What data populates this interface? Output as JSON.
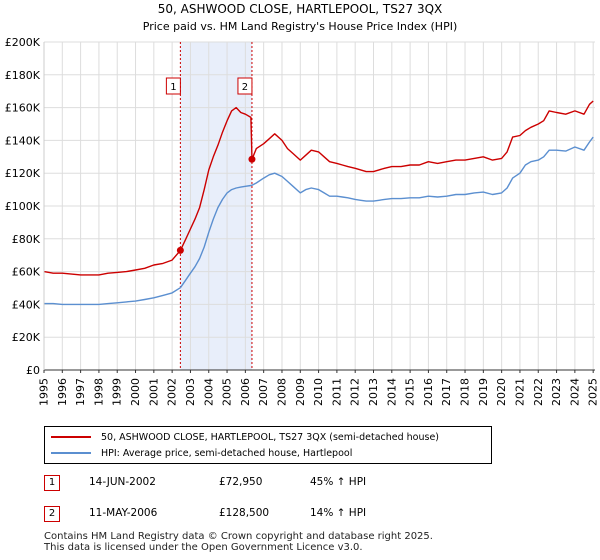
{
  "chart_data": {
    "type": "line",
    "title": "50, ASHWOOD CLOSE, HARTLEPOOL, TS27 3QX",
    "subtitle": "Price paid vs. HM Land Registry's House Price Index (HPI)",
    "xlim": [
      1995,
      2025.1
    ],
    "ylim": [
      0,
      200000
    ],
    "y_ticks": [
      0,
      20000,
      40000,
      60000,
      80000,
      100000,
      120000,
      140000,
      160000,
      180000,
      200000
    ],
    "y_tick_labels": [
      "£0",
      "£20K",
      "£40K",
      "£60K",
      "£80K",
      "£100K",
      "£120K",
      "£140K",
      "£160K",
      "£180K",
      "£200K"
    ],
    "x_ticks": [
      1995,
      1996,
      1997,
      1998,
      1999,
      2000,
      2001,
      2002,
      2003,
      2004,
      2005,
      2006,
      2007,
      2008,
      2009,
      2010,
      2011,
      2012,
      2013,
      2014,
      2015,
      2016,
      2017,
      2018,
      2019,
      2020,
      2021,
      2022,
      2023,
      2024,
      2025
    ],
    "x_tick_labels": [
      "1995",
      "1996",
      "1997",
      "1998",
      "1999",
      "2000",
      "2001",
      "2002",
      "2003",
      "2004",
      "2005",
      "2006",
      "2007",
      "2008",
      "2009",
      "2010",
      "2011",
      "2012",
      "2013",
      "2014",
      "2015",
      "2016",
      "2017",
      "2018",
      "2019",
      "2020",
      "2021",
      "2022",
      "2023",
      "2024",
      "2025"
    ],
    "grid": true,
    "shaded_period": [
      2002.45,
      2006.36
    ],
    "series": [
      {
        "name": "50, ASHWOOD CLOSE, HARTLEPOOL, TS27 3QX (semi-detached house)",
        "color": "#cc0000",
        "x": [
          1995,
          1995.5,
          1996,
          1996.5,
          1997,
          1997.5,
          1998,
          1998.5,
          1999,
          1999.5,
          2000,
          2000.5,
          2001,
          2001.5,
          2002,
          2002.45,
          2002.75,
          2003,
          2003.25,
          2003.5,
          2003.75,
          2004,
          2004.25,
          2004.5,
          2004.75,
          2005,
          2005.25,
          2005.5,
          2005.75,
          2006,
          2006.3,
          2006.36,
          2006.6,
          2007,
          2007.3,
          2007.6,
          2008,
          2008.3,
          2008.6,
          2009,
          2009.3,
          2009.6,
          2010,
          2010.3,
          2010.6,
          2011,
          2011.3,
          2011.6,
          2012,
          2012.3,
          2012.6,
          2013,
          2013.3,
          2013.6,
          2014,
          2014.5,
          2015,
          2015.5,
          2016,
          2016.5,
          2017,
          2017.5,
          2018,
          2018.5,
          2019,
          2019.5,
          2020,
          2020.3,
          2020.6,
          2021,
          2021.3,
          2021.6,
          2022,
          2022.3,
          2022.6,
          2023,
          2023.5,
          2024,
          2024.5,
          2024.8,
          2025
        ],
        "values": [
          60000,
          59000,
          59000,
          58500,
          58000,
          58000,
          58000,
          59000,
          59500,
          60000,
          61000,
          62000,
          64000,
          65000,
          67000,
          72950,
          80000,
          86000,
          92000,
          99000,
          110000,
          122000,
          130000,
          137000,
          145000,
          152000,
          158000,
          160000,
          157000,
          156000,
          154000,
          128500,
          135000,
          138000,
          141000,
          144000,
          140000,
          135000,
          132000,
          128000,
          131000,
          134000,
          133000,
          130000,
          127000,
          126000,
          125000,
          124000,
          123000,
          122000,
          121000,
          121000,
          122000,
          123000,
          124000,
          124000,
          125000,
          125000,
          127000,
          126000,
          127000,
          128000,
          128000,
          129000,
          130000,
          128000,
          129000,
          133000,
          142000,
          143000,
          146000,
          148000,
          150000,
          152000,
          158000,
          157000,
          156000,
          158000,
          156000,
          162000,
          164000
        ]
      },
      {
        "name": "HPI: Average price, semi-detached house, Hartlepool",
        "color": "#5b8fd0",
        "x": [
          1995,
          1995.5,
          1996,
          1996.5,
          1997,
          1997.5,
          1998,
          1998.5,
          1999,
          1999.5,
          2000,
          2000.5,
          2001,
          2001.5,
          2002,
          2002.45,
          2002.75,
          2003,
          2003.25,
          2003.5,
          2003.75,
          2004,
          2004.25,
          2004.5,
          2004.75,
          2005,
          2005.25,
          2005.5,
          2005.75,
          2006,
          2006.3,
          2006.36,
          2006.6,
          2007,
          2007.3,
          2007.6,
          2008,
          2008.3,
          2008.6,
          2009,
          2009.3,
          2009.6,
          2010,
          2010.3,
          2010.6,
          2011,
          2011.3,
          2011.6,
          2012,
          2012.3,
          2012.6,
          2013,
          2013.3,
          2013.6,
          2014,
          2014.5,
          2015,
          2015.5,
          2016,
          2016.5,
          2017,
          2017.5,
          2018,
          2018.5,
          2019,
          2019.5,
          2020,
          2020.3,
          2020.6,
          2021,
          2021.3,
          2021.6,
          2022,
          2022.3,
          2022.6,
          2023,
          2023.5,
          2024,
          2024.5,
          2024.8,
          2025
        ],
        "values": [
          40500,
          40500,
          40000,
          40000,
          40000,
          40000,
          40000,
          40500,
          41000,
          41500,
          42000,
          43000,
          44000,
          45500,
          47000,
          50200,
          55000,
          59000,
          63000,
          68000,
          75000,
          84000,
          92000,
          99000,
          104000,
          108000,
          110000,
          111000,
          111500,
          112000,
          112500,
          112700,
          114000,
          117000,
          119000,
          120000,
          118000,
          115000,
          112000,
          108000,
          110000,
          111000,
          110000,
          108000,
          106000,
          106000,
          105500,
          105000,
          104000,
          103500,
          103000,
          103000,
          103500,
          104000,
          104500,
          104500,
          105000,
          105000,
          106000,
          105500,
          106000,
          107000,
          107000,
          108000,
          108500,
          107000,
          108000,
          111000,
          117000,
          120000,
          125000,
          127000,
          128000,
          130000,
          134000,
          134000,
          133500,
          136000,
          134000,
          139000,
          142000
        ]
      }
    ],
    "sales": [
      {
        "marker": "1",
        "x": 2002.45,
        "value": 72950,
        "date": "14-JUN-2002",
        "price": "£72,950",
        "hpi": "45% ↑ HPI"
      },
      {
        "marker": "2",
        "x": 2006.36,
        "value": 128500,
        "date": "11-MAY-2006",
        "price": "£128,500",
        "hpi": "14% ↑ HPI"
      }
    ]
  },
  "legend": {
    "line1": "50, ASHWOOD CLOSE, HARTLEPOOL, TS27 3QX (semi-detached house)",
    "line2": "HPI: Average price, semi-detached house, Hartlepool"
  },
  "footer": {
    "line1": "Contains HM Land Registry data © Crown copyright and database right 2025.",
    "line2": "This data is licensed under the Open Government Licence v3.0."
  }
}
